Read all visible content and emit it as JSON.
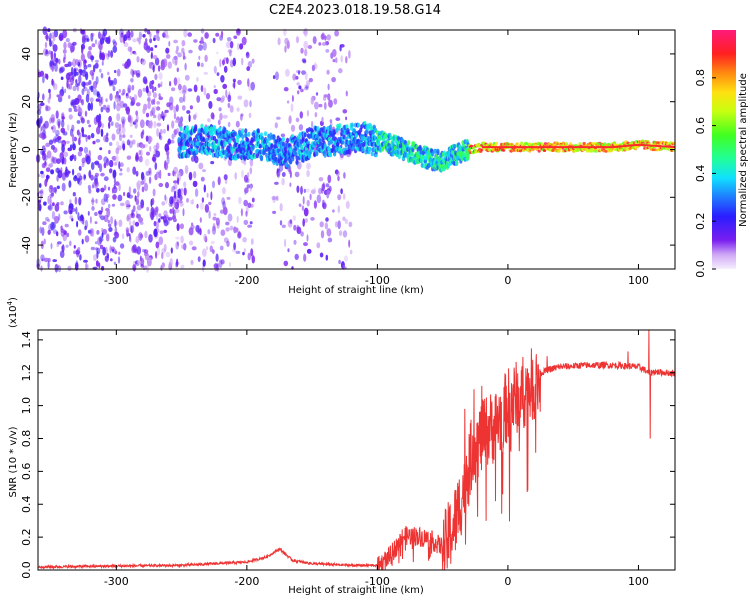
{
  "title": "C2E4.2023.018.19.58.G14",
  "chart_data": [
    {
      "type": "heatmap",
      "xlabel": "Height of straight line (km)",
      "ylabel": "Frequency (Hz)",
      "xlim": [
        -360,
        128
      ],
      "ylim": [
        -50,
        50
      ],
      "xticks": [
        -300,
        -200,
        -100,
        0,
        100
      ],
      "yticks": [
        -40,
        -20,
        0,
        20,
        40
      ],
      "colorbar": {
        "label": "Normalized spectral amplitude",
        "range": [
          0,
          1
        ],
        "ticks": [
          0.0,
          0.2,
          0.4,
          0.6,
          0.8
        ]
      },
      "ridge": {
        "x": [
          -250,
          -230,
          -210,
          -190,
          -170,
          -150,
          -130,
          -110,
          -90,
          -75,
          -60,
          -50,
          -40,
          -30,
          -20,
          -10,
          0,
          20,
          40,
          60,
          80,
          100,
          128
        ],
        "y": [
          3,
          4,
          2,
          2,
          -2,
          3,
          4,
          5,
          2,
          -1,
          -4,
          -5,
          -2,
          0,
          1,
          1,
          1,
          1,
          1,
          1,
          1,
          2,
          1
        ]
      }
    },
    {
      "type": "line",
      "xlabel": "Height of straight line (km)",
      "ylabel": "SNR (10 * v/v)",
      "yscale_label": "(x10",
      "yscale_exp": "4",
      "yscale_close": ")",
      "xlim": [
        -360,
        128
      ],
      "ylim": [
        0,
        1.46
      ],
      "xticks": [
        -300,
        -200,
        -100,
        0,
        100
      ],
      "yticks": [
        0.0,
        0.2,
        0.4,
        0.6,
        0.8,
        1.0,
        1.2,
        1.4
      ],
      "color": "#ee3333",
      "envelope": {
        "x": [
          -360,
          -250,
          -200,
          -185,
          -175,
          -165,
          -150,
          -120,
          -100,
          -90,
          -80,
          -70,
          -60,
          -50,
          -45,
          -40,
          -35,
          -30,
          -25,
          -20,
          -15,
          -10,
          -5,
          0,
          10,
          20,
          30,
          40,
          60,
          80,
          100,
          105,
          108,
          112,
          128
        ],
        "y": [
          0.02,
          0.03,
          0.05,
          0.08,
          0.13,
          0.06,
          0.04,
          0.03,
          0.03,
          0.1,
          0.22,
          0.22,
          0.2,
          0.15,
          0.25,
          0.35,
          0.5,
          0.7,
          0.8,
          0.85,
          0.9,
          0.92,
          0.98,
          1.05,
          1.12,
          1.18,
          1.22,
          1.24,
          1.25,
          1.25,
          1.24,
          1.22,
          1.2,
          1.21,
          1.2
        ]
      },
      "spikes": [
        {
          "x": -33,
          "y": 0.98
        },
        {
          "x": -26,
          "y": 1.1
        },
        {
          "x": -20,
          "y": 1.12
        },
        {
          "x": 30,
          "y": 1.3
        },
        {
          "x": 92,
          "y": 1.33
        },
        {
          "x": 108,
          "y": 1.46
        },
        {
          "x": 109,
          "y": 0.8
        }
      ]
    }
  ]
}
